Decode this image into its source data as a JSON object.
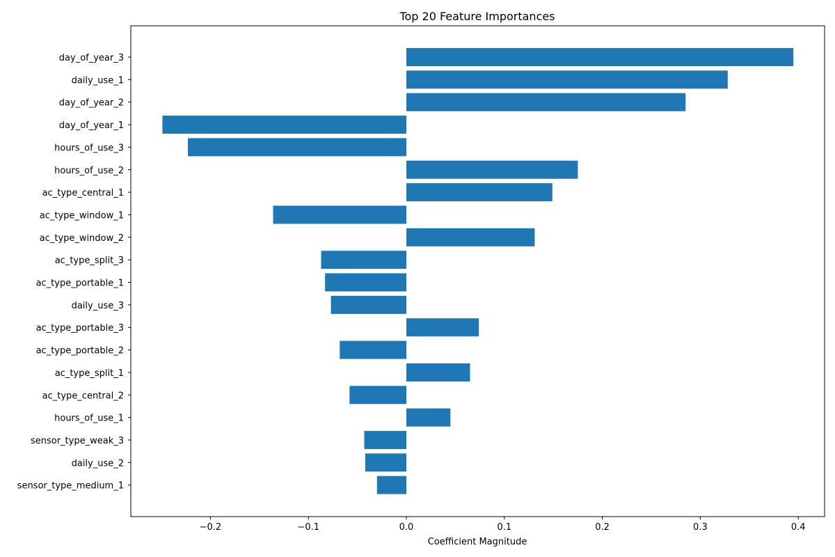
{
  "chart_data": {
    "type": "bar",
    "orientation": "horizontal",
    "title": "Top 20 Feature Importances",
    "xlabel": "Coefficient Magnitude",
    "ylabel": "",
    "xlim": [
      -0.285,
      0.43
    ],
    "xticks": [
      -0.2,
      -0.1,
      0.0,
      0.1,
      0.2,
      0.3,
      0.4
    ],
    "xtick_labels": [
      "−0.2",
      "−0.1",
      "0.0",
      "0.1",
      "0.2",
      "0.3",
      "0.4"
    ],
    "grid": false,
    "bar_color": "#1f77b4",
    "categories": [
      "day_of_year_3",
      "daily_use_1",
      "day_of_year_2",
      "day_of_year_1",
      "hours_of_use_3",
      "hours_of_use_2",
      "ac_type_central_1",
      "ac_type_window_1",
      "ac_type_window_2",
      "ac_type_split_3",
      "ac_type_portable_1",
      "daily_use_3",
      "ac_type_portable_3",
      "ac_type_portable_2",
      "ac_type_split_1",
      "ac_type_central_2",
      "hours_of_use_1",
      "sensor_type_weak_3",
      "daily_use_2",
      "sensor_type_medium_1"
    ],
    "values": [
      0.395,
      0.328,
      0.285,
      -0.249,
      -0.223,
      0.175,
      0.149,
      -0.136,
      0.131,
      -0.087,
      -0.083,
      -0.077,
      0.074,
      -0.068,
      0.065,
      -0.058,
      0.045,
      -0.043,
      -0.042,
      -0.03
    ]
  }
}
